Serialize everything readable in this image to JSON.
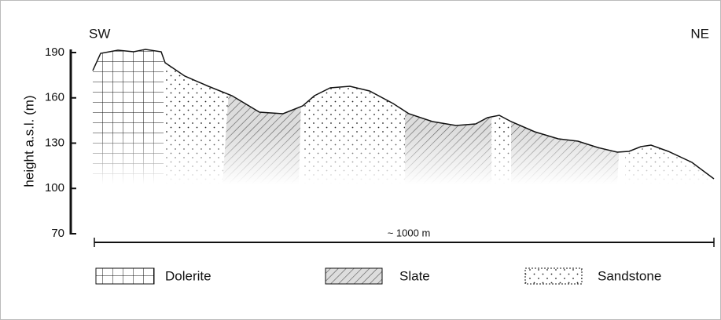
{
  "labels": {
    "sw": "SW",
    "ne": "NE"
  },
  "y_axis": {
    "label": "height a.s.l. (m)",
    "ticks": [
      190,
      160,
      130,
      100,
      70
    ]
  },
  "scale_bar": "~ 1000 m",
  "legend": [
    {
      "label": "Dolerite"
    },
    {
      "label": "Slate"
    },
    {
      "label": "Sandstone"
    }
  ]
}
